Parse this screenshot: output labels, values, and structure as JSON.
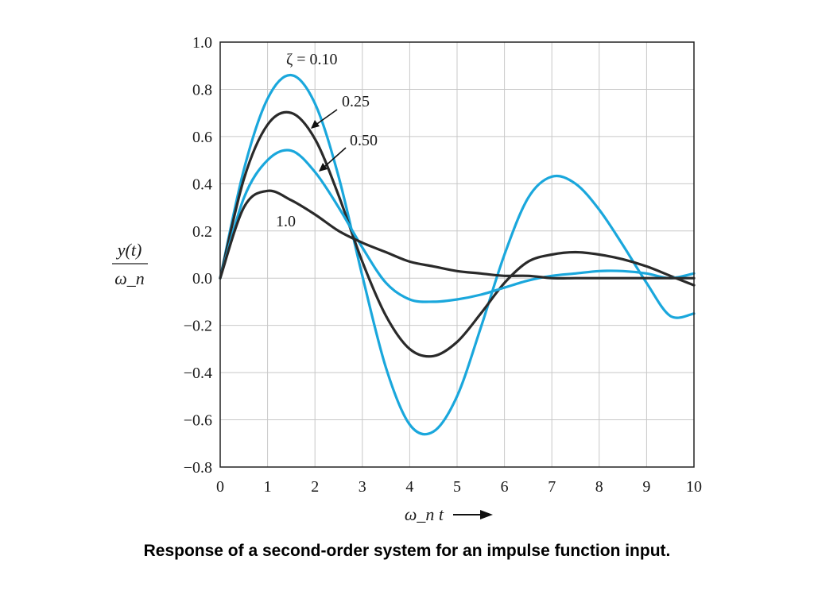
{
  "chart_data": {
    "type": "line",
    "title": "",
    "xlabel": "ω_n t",
    "ylabel": "y(t) / ω_n",
    "ylabel_num": "y(t)",
    "ylabel_den": "ω_n",
    "xlim": [
      0,
      10
    ],
    "ylim": [
      -0.8,
      1.0
    ],
    "xticks": [
      "0",
      "1",
      "2",
      "3",
      "4",
      "5",
      "6",
      "7",
      "8",
      "9",
      "10"
    ],
    "yticks": [
      "1.0",
      "0.8",
      "0.6",
      "0.4",
      "0.2",
      "0.0",
      "−0.2",
      "−0.4",
      "−0.6",
      "−0.8"
    ],
    "grid": true,
    "series": [
      {
        "name": "ζ = 0.10",
        "zeta": 0.1,
        "color": "#1aa7dc",
        "x": [
          0,
          0.5,
          1,
          1.5,
          2,
          2.5,
          3,
          3.5,
          4,
          4.5,
          5,
          5.5,
          6,
          6.5,
          7,
          7.5,
          8,
          8.5,
          9,
          9.5,
          10
        ],
        "y": [
          0,
          0.46,
          0.76,
          0.86,
          0.74,
          0.43,
          0.01,
          -0.38,
          -0.62,
          -0.65,
          -0.5,
          -0.21,
          0.1,
          0.34,
          0.43,
          0.4,
          0.29,
          0.14,
          -0.02,
          -0.16,
          -0.15
        ]
      },
      {
        "name": "0.25",
        "zeta": 0.25,
        "color": "#2a2a2a",
        "x": [
          0,
          0.5,
          1,
          1.5,
          2,
          2.5,
          3,
          3.5,
          4,
          4.5,
          5,
          5.5,
          6,
          6.5,
          7,
          7.5,
          8,
          8.5,
          9,
          9.5,
          10
        ],
        "y": [
          0,
          0.42,
          0.65,
          0.7,
          0.59,
          0.35,
          0.07,
          -0.16,
          -0.3,
          -0.33,
          -0.27,
          -0.15,
          -0.02,
          0.07,
          0.1,
          0.11,
          0.1,
          0.08,
          0.05,
          0.01,
          -0.03
        ]
      },
      {
        "name": "0.50",
        "zeta": 0.5,
        "color": "#1aa7dc",
        "x": [
          0,
          0.5,
          1,
          1.5,
          2,
          2.5,
          3,
          3.5,
          4,
          4.5,
          5,
          5.5,
          6,
          6.5,
          7,
          7.5,
          8,
          8.5,
          9,
          9.5,
          10
        ],
        "y": [
          0,
          0.34,
          0.5,
          0.54,
          0.45,
          0.3,
          0.13,
          -0.02,
          -0.09,
          -0.1,
          -0.09,
          -0.07,
          -0.04,
          -0.01,
          0.01,
          0.02,
          0.03,
          0.03,
          0.02,
          0.0,
          0.02
        ]
      },
      {
        "name": "1.0",
        "zeta": 1.0,
        "color": "#2a2a2a",
        "x": [
          0,
          0.5,
          1,
          1.5,
          2,
          2.5,
          3,
          3.5,
          4,
          4.5,
          5,
          5.5,
          6,
          6.5,
          7,
          7.5,
          8,
          8.5,
          9,
          9.5,
          10
        ],
        "y": [
          0,
          0.3,
          0.37,
          0.33,
          0.27,
          0.2,
          0.15,
          0.11,
          0.07,
          0.05,
          0.03,
          0.02,
          0.01,
          0.01,
          0.0,
          0.0,
          0.0,
          0.0,
          0.0,
          0.0,
          0.0
        ]
      }
    ],
    "annotations": [
      "ζ = 0.10",
      "0.25",
      "0.50",
      "1.0"
    ]
  },
  "caption": "Response of a second-order system for an impulse function input."
}
